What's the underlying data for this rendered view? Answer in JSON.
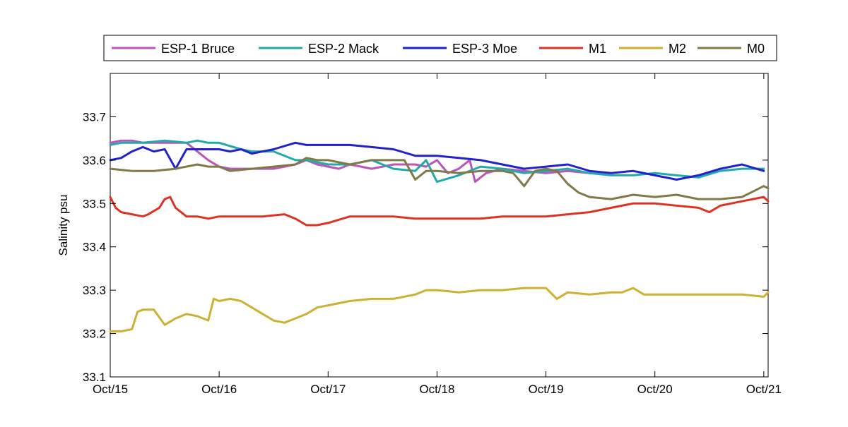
{
  "chart_data": {
    "type": "line",
    "title": "",
    "xlabel": "",
    "ylabel": "Salinity psu",
    "xlim": [
      0,
      6.04
    ],
    "ylim": [
      33.1,
      33.8
    ],
    "x_ticks": [
      {
        "value": 0,
        "label": "Oct/15"
      },
      {
        "value": 1,
        "label": "Oct/16"
      },
      {
        "value": 2,
        "label": "Oct/17"
      },
      {
        "value": 3,
        "label": "Oct/18"
      },
      {
        "value": 4,
        "label": "Oct/19"
      },
      {
        "value": 5,
        "label": "Oct/20"
      },
      {
        "value": 6,
        "label": "Oct/21"
      }
    ],
    "y_ticks": [
      {
        "value": 33.1,
        "label": "33.1"
      },
      {
        "value": 33.2,
        "label": "33.2"
      },
      {
        "value": 33.3,
        "label": "33.3"
      },
      {
        "value": 33.4,
        "label": "33.4"
      },
      {
        "value": 33.5,
        "label": "33.5"
      },
      {
        "value": 33.6,
        "label": "33.6"
      },
      {
        "value": 33.7,
        "label": "33.7"
      }
    ],
    "grid": false,
    "legend_position": "top, outside plot",
    "series": [
      {
        "name": "ESP-1 Bruce",
        "color": "#bb55bb",
        "x": [
          0,
          0.1,
          0.2,
          0.3,
          0.5,
          0.7,
          0.9,
          1.0,
          1.1,
          1.3,
          1.5,
          1.7,
          1.8,
          1.9,
          2.0,
          2.1,
          2.2,
          2.4,
          2.6,
          2.7,
          2.8,
          2.9,
          3.0,
          3.1,
          3.2,
          3.3,
          3.35,
          3.45,
          3.6,
          3.8,
          4.0,
          4.2,
          4.4
        ],
        "y": [
          33.64,
          33.645,
          33.645,
          33.64,
          33.64,
          33.64,
          33.6,
          33.585,
          33.58,
          33.58,
          33.58,
          33.59,
          33.6,
          33.59,
          33.585,
          33.58,
          33.59,
          33.58,
          33.59,
          33.59,
          33.59,
          33.585,
          33.6,
          33.57,
          33.58,
          33.6,
          33.55,
          33.57,
          33.58,
          33.575,
          33.57,
          33.575,
          33.57
        ]
      },
      {
        "name": "ESP-2 Mack",
        "color": "#22aaaa",
        "x": [
          0,
          0.1,
          0.3,
          0.5,
          0.7,
          0.8,
          0.9,
          1.0,
          1.2,
          1.3,
          1.5,
          1.7,
          1.8,
          2.0,
          2.2,
          2.4,
          2.6,
          2.8,
          2.9,
          3.0,
          3.2,
          3.4,
          3.6,
          3.8,
          4.0,
          4.2,
          4.4,
          4.6,
          4.8,
          5.0,
          5.2,
          5.4,
          5.6,
          5.8,
          6.0
        ],
        "y": [
          33.635,
          33.64,
          33.64,
          33.645,
          33.64,
          33.645,
          33.64,
          33.64,
          33.625,
          33.62,
          33.62,
          33.6,
          33.6,
          33.59,
          33.59,
          33.6,
          33.58,
          33.575,
          33.6,
          33.55,
          33.565,
          33.585,
          33.58,
          33.57,
          33.575,
          33.58,
          33.57,
          33.565,
          33.565,
          33.57,
          33.565,
          33.56,
          33.575,
          33.58,
          33.58
        ]
      },
      {
        "name": "ESP-3 Moe",
        "color": "#2222cc",
        "x": [
          0,
          0.1,
          0.2,
          0.3,
          0.4,
          0.5,
          0.6,
          0.7,
          0.8,
          0.9,
          1.0,
          1.1,
          1.2,
          1.3,
          1.5,
          1.7,
          1.8,
          2.0,
          2.2,
          2.4,
          2.6,
          2.8,
          3.0,
          3.2,
          3.4,
          3.6,
          3.8,
          4.0,
          4.2,
          4.4,
          4.6,
          4.8,
          5.0,
          5.2,
          5.4,
          5.6,
          5.7,
          5.8,
          6.0
        ],
        "y": [
          33.6,
          33.605,
          33.62,
          33.63,
          33.62,
          33.625,
          33.58,
          33.625,
          33.625,
          33.625,
          33.625,
          33.62,
          33.625,
          33.615,
          33.625,
          33.64,
          33.635,
          33.635,
          33.635,
          33.63,
          33.625,
          33.61,
          33.61,
          33.605,
          33.6,
          33.59,
          33.58,
          33.585,
          33.59,
          33.575,
          33.57,
          33.575,
          33.565,
          33.555,
          33.565,
          33.58,
          33.585,
          33.59,
          33.575
        ]
      },
      {
        "name": "M1",
        "color": "#dd3322",
        "x": [
          0,
          0.05,
          0.1,
          0.2,
          0.3,
          0.35,
          0.45,
          0.5,
          0.55,
          0.6,
          0.7,
          0.8,
          0.9,
          1.0,
          1.2,
          1.4,
          1.6,
          1.7,
          1.8,
          1.9,
          2.0,
          2.2,
          2.4,
          2.6,
          2.8,
          3.0,
          3.2,
          3.4,
          3.6,
          3.8,
          4.0,
          4.2,
          4.4,
          4.6,
          4.8,
          5.0,
          5.2,
          5.4,
          5.5,
          5.6,
          5.8,
          5.9,
          6.0,
          6.04
        ],
        "y": [
          33.515,
          33.49,
          33.48,
          33.475,
          33.47,
          33.475,
          33.49,
          33.51,
          33.515,
          33.49,
          33.47,
          33.47,
          33.465,
          33.47,
          33.47,
          33.47,
          33.475,
          33.465,
          33.45,
          33.45,
          33.455,
          33.47,
          33.47,
          33.47,
          33.465,
          33.465,
          33.465,
          33.465,
          33.47,
          33.47,
          33.47,
          33.475,
          33.48,
          33.49,
          33.5,
          33.5,
          33.495,
          33.49,
          33.48,
          33.495,
          33.505,
          33.51,
          33.515,
          33.505
        ]
      },
      {
        "name": "M2",
        "color": "#ccb133",
        "x": [
          0,
          0.1,
          0.2,
          0.25,
          0.3,
          0.4,
          0.5,
          0.6,
          0.7,
          0.8,
          0.9,
          0.95,
          1.0,
          1.1,
          1.2,
          1.3,
          1.4,
          1.5,
          1.6,
          1.7,
          1.8,
          1.9,
          2.0,
          2.2,
          2.4,
          2.6,
          2.8,
          2.9,
          3.0,
          3.2,
          3.4,
          3.6,
          3.8,
          4.0,
          4.1,
          4.2,
          4.4,
          4.6,
          4.7,
          4.8,
          4.9,
          5.0,
          5.2,
          5.4,
          5.6,
          5.8,
          6.0,
          6.04
        ],
        "y": [
          33.205,
          33.205,
          33.21,
          33.25,
          33.255,
          33.255,
          33.22,
          33.235,
          33.245,
          33.24,
          33.23,
          33.28,
          33.275,
          33.28,
          33.275,
          33.26,
          33.245,
          33.23,
          33.225,
          33.235,
          33.245,
          33.26,
          33.265,
          33.275,
          33.28,
          33.28,
          33.29,
          33.3,
          33.3,
          33.295,
          33.3,
          33.3,
          33.305,
          33.305,
          33.28,
          33.295,
          33.29,
          33.295,
          33.295,
          33.305,
          33.29,
          33.29,
          33.29,
          33.29,
          33.29,
          33.29,
          33.285,
          33.295
        ]
      },
      {
        "name": "M0",
        "color": "#7f7a47",
        "x": [
          0,
          0.2,
          0.4,
          0.6,
          0.8,
          0.9,
          1.0,
          1.1,
          1.3,
          1.5,
          1.7,
          1.8,
          1.9,
          2.0,
          2.2,
          2.4,
          2.6,
          2.7,
          2.8,
          2.9,
          3.0,
          3.2,
          3.4,
          3.6,
          3.7,
          3.8,
          3.9,
          4.0,
          4.1,
          4.2,
          4.3,
          4.4,
          4.6,
          4.8,
          5.0,
          5.2,
          5.4,
          5.6,
          5.8,
          6.0,
          6.04
        ],
        "y": [
          33.58,
          33.575,
          33.575,
          33.58,
          33.59,
          33.585,
          33.585,
          33.575,
          33.58,
          33.585,
          33.59,
          33.605,
          33.6,
          33.6,
          33.59,
          33.6,
          33.6,
          33.6,
          33.555,
          33.575,
          33.575,
          33.57,
          33.575,
          33.575,
          33.57,
          33.54,
          33.575,
          33.58,
          33.575,
          33.545,
          33.525,
          33.515,
          33.51,
          33.52,
          33.515,
          33.52,
          33.51,
          33.51,
          33.515,
          33.54,
          33.535
        ]
      }
    ]
  }
}
